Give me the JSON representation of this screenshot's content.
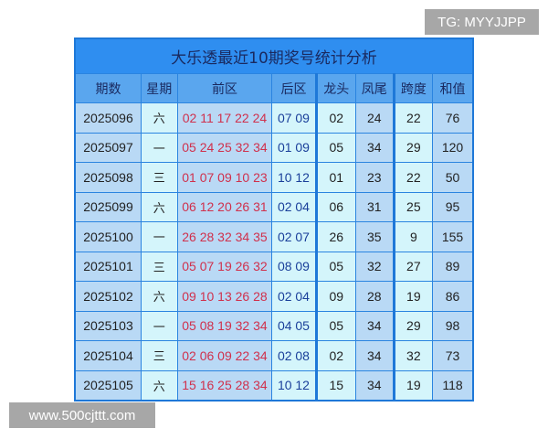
{
  "watermarks": {
    "tg": "TG: MYYJJPP",
    "site": "www.500cjttt.com"
  },
  "table": {
    "title": "大乐透最近10期奖号统计分析",
    "headers": [
      "期数",
      "星期",
      "前区",
      "后区",
      "龙头",
      "凤尾",
      "跨度",
      "和值"
    ],
    "rows": [
      [
        "2025096",
        "六",
        "02 11 17 22 24",
        "07 09",
        "02",
        "24",
        "22",
        "76"
      ],
      [
        "2025097",
        "一",
        "05 24 25 32 34",
        "01 09",
        "05",
        "34",
        "29",
        "120"
      ],
      [
        "2025098",
        "三",
        "01 07 09 10 23",
        "10 12",
        "01",
        "23",
        "22",
        "50"
      ],
      [
        "2025099",
        "六",
        "06 12 20 26 31",
        "02 04",
        "06",
        "31",
        "25",
        "95"
      ],
      [
        "2025100",
        "一",
        "26 28 32 34 35",
        "02 07",
        "26",
        "35",
        "9",
        "155"
      ],
      [
        "2025101",
        "三",
        "05 07 19 26 32",
        "08 09",
        "05",
        "32",
        "27",
        "89"
      ],
      [
        "2025102",
        "六",
        "09 10 13 26 28",
        "02 04",
        "09",
        "28",
        "19",
        "86"
      ],
      [
        "2025103",
        "一",
        "05 08 19 32 34",
        "04 05",
        "05",
        "34",
        "29",
        "98"
      ],
      [
        "2025104",
        "三",
        "02 06 09 22 34",
        "02 08",
        "02",
        "34",
        "32",
        "73"
      ],
      [
        "2025105",
        "六",
        "15 16 25 28 34",
        "10 12",
        "15",
        "34",
        "19",
        "118"
      ]
    ]
  },
  "colors": {
    "front": "#d0304c",
    "back": "#1a3f9a",
    "title_bg": "#2f8ef0",
    "header_bg": "#5aa6ee"
  }
}
